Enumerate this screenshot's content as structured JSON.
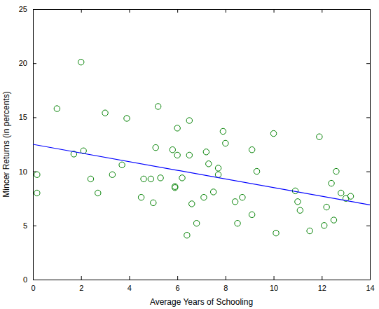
{
  "chart_data": {
    "type": "scatter",
    "x_label": "Average Years of Schooling",
    "y_label": "Mincer Returns (in percents)",
    "xlim": [
      0,
      14
    ],
    "ylim": [
      0,
      25
    ],
    "xticks": [
      0,
      2,
      4,
      6,
      8,
      10,
      12,
      14
    ],
    "yticks": [
      0,
      5,
      10,
      15,
      20,
      25
    ],
    "grid": false,
    "series": [
      {
        "type": "scatter",
        "marker": "circle",
        "color": "#008000",
        "x": [
          0.17,
          0.17,
          1.0,
          1.7,
          2.0,
          2.1,
          2.4,
          2.7,
          3.0,
          3.3,
          3.7,
          3.9,
          4.5,
          4.6,
          4.9,
          5.0,
          5.1,
          5.2,
          5.3,
          5.8,
          5.9,
          5.9,
          6.0,
          6.0,
          6.2,
          6.4,
          6.5,
          6.5,
          6.6,
          6.8,
          7.1,
          7.2,
          7.3,
          7.5,
          7.7,
          7.7,
          7.9,
          8.0,
          8.4,
          8.5,
          8.7,
          9.1,
          9.1,
          9.3,
          10.0,
          10.1,
          10.9,
          11.0,
          11.1,
          11.5,
          11.9,
          12.1,
          12.2,
          12.4,
          12.5,
          12.6,
          12.8,
          13.0,
          13.2
        ],
        "values": [
          9.7,
          8.0,
          15.8,
          11.6,
          20.1,
          11.9,
          9.3,
          8.0,
          15.4,
          9.7,
          10.6,
          14.9,
          7.6,
          9.3,
          9.3,
          7.1,
          12.2,
          16.0,
          9.4,
          12.0,
          8.5,
          8.6,
          14.0,
          11.5,
          9.4,
          4.1,
          14.7,
          11.5,
          7.0,
          5.2,
          7.6,
          11.8,
          10.7,
          8.1,
          10.3,
          9.7,
          13.7,
          12.6,
          7.2,
          5.2,
          7.6,
          12.0,
          6.0,
          10.0,
          13.5,
          4.3,
          8.2,
          7.2,
          6.4,
          4.5,
          13.2,
          5.0,
          6.7,
          8.9,
          5.5,
          10.0,
          8.0,
          7.5,
          7.7
        ]
      },
      {
        "type": "line",
        "line_style": "solid",
        "color": "#0000ff",
        "x": [
          0,
          14
        ],
        "values": [
          12.5,
          6.9
        ]
      }
    ]
  }
}
